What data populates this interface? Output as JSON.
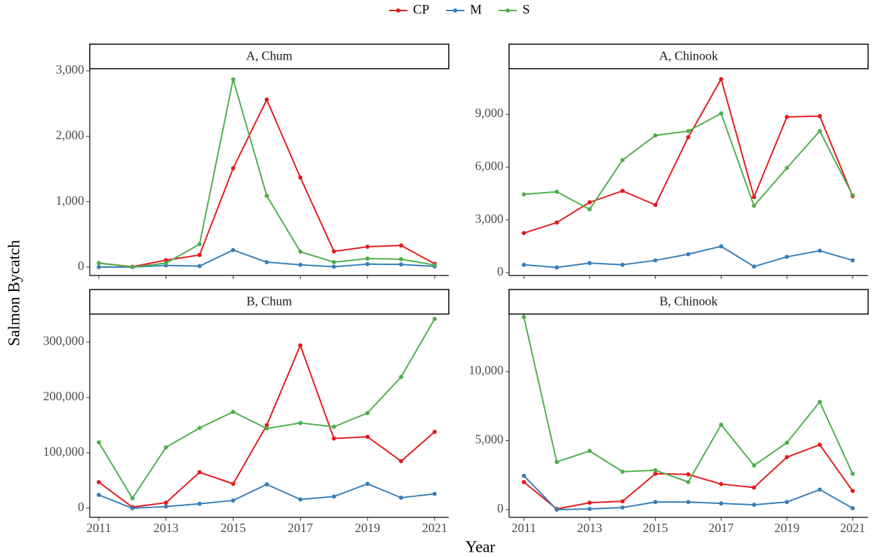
{
  "xlabel": "Year",
  "ylabel": "Salmon Bycatch",
  "chart_data": [
    {
      "type": "line",
      "title": "A, Chum",
      "x": [
        2011,
        2012,
        2013,
        2014,
        2015,
        2016,
        2017,
        2018,
        2019,
        2020,
        2021
      ],
      "xlim": [
        2010.73,
        2021.42
      ],
      "xticks": [
        2011,
        2013,
        2015,
        2017,
        2019,
        2021
      ],
      "ylim": [
        -129,
        3033
      ],
      "yticks": [
        0,
        {
          "value": 1000,
          "label": "1,000"
        },
        {
          "value": 2000,
          "label": "2,000"
        },
        {
          "value": 3000,
          "label": "3,000"
        }
      ],
      "series": [
        {
          "name": "CP",
          "color": "#e41a1c",
          "values": [
            60,
            5,
            105,
            185,
            1510,
            2560,
            1370,
            240,
            310,
            330,
            50
          ]
        },
        {
          "name": "M",
          "color": "#377eb8",
          "values": [
            0,
            0,
            25,
            15,
            260,
            75,
            35,
            5,
            45,
            40,
            10
          ]
        },
        {
          "name": "S",
          "color": "#4daf4a",
          "values": [
            60,
            0,
            60,
            350,
            2870,
            1090,
            235,
            75,
            130,
            120,
            30
          ]
        }
      ]
    },
    {
      "type": "line",
      "title": "A, Chinook",
      "x": [
        2011,
        2012,
        2013,
        2014,
        2015,
        2016,
        2017,
        2018,
        2019,
        2020,
        2021
      ],
      "xlim": [
        2010.55,
        2021.47
      ],
      "xticks": [
        2011,
        2013,
        2015,
        2017,
        2019,
        2021
      ],
      "ylim": [
        -159,
        11593
      ],
      "yticks": [
        0,
        {
          "value": 3000,
          "label": "3,000"
        },
        {
          "value": 6000,
          "label": "6,000"
        },
        {
          "value": 9000,
          "label": "9,000"
        }
      ],
      "series": [
        {
          "name": "CP",
          "color": "#e41a1c",
          "values": [
            2250,
            2850,
            4000,
            4650,
            3850,
            7700,
            11000,
            4300,
            8850,
            8900,
            4350
          ]
        },
        {
          "name": "M",
          "color": "#377eb8",
          "values": [
            450,
            300,
            550,
            450,
            700,
            1050,
            1500,
            350,
            900,
            1250,
            700
          ]
        },
        {
          "name": "S",
          "color": "#4daf4a",
          "values": [
            4450,
            4600,
            3600,
            6400,
            7800,
            8050,
            9050,
            3800,
            5950,
            8050,
            4400
          ]
        }
      ]
    },
    {
      "type": "line",
      "title": "B, Chum",
      "x": [
        2011,
        2012,
        2013,
        2014,
        2015,
        2016,
        2017,
        2018,
        2019,
        2020,
        2021
      ],
      "xlim": [
        2010.73,
        2021.42
      ],
      "xticks": [
        2011,
        2013,
        2015,
        2017,
        2019,
        2021
      ],
      "ylim": [
        -16456,
        350633
      ],
      "yticks": [
        0,
        {
          "value": 100000,
          "label": "100,000"
        },
        {
          "value": 200000,
          "label": "200,000"
        },
        {
          "value": 300000,
          "label": "300,000"
        }
      ],
      "series": [
        {
          "name": "CP",
          "color": "#e41a1c",
          "values": [
            47000,
            2000,
            10000,
            65000,
            44000,
            150000,
            294000,
            126000,
            129000,
            85000,
            138000
          ]
        },
        {
          "name": "M",
          "color": "#377eb8",
          "values": [
            24000,
            0,
            3000,
            8000,
            14000,
            43000,
            16000,
            21000,
            44000,
            19000,
            26000
          ]
        },
        {
          "name": "S",
          "color": "#4daf4a",
          "values": [
            119000,
            18000,
            110000,
            145000,
            174000,
            144000,
            154000,
            147000,
            172000,
            237000,
            342000
          ]
        }
      ]
    },
    {
      "type": "line",
      "title": "B, Chinook",
      "x": [
        2011,
        2012,
        2013,
        2014,
        2015,
        2016,
        2017,
        2018,
        2019,
        2020,
        2021
      ],
      "xlim": [
        2010.55,
        2021.47
      ],
      "xticks": [
        2011,
        2013,
        2015,
        2017,
        2019,
        2021
      ],
      "ylim": [
        -558,
        14162
      ],
      "yticks": [
        0,
        {
          "value": 5000,
          "label": "5,000"
        },
        {
          "value": 10000,
          "label": "10,000"
        }
      ],
      "series": [
        {
          "name": "CP",
          "color": "#e41a1c",
          "values": [
            2000,
            50,
            500,
            600,
            2600,
            2550,
            1850,
            1600,
            3800,
            4700,
            1350
          ]
        },
        {
          "name": "M",
          "color": "#377eb8",
          "values": [
            2450,
            0,
            50,
            150,
            550,
            550,
            450,
            350,
            550,
            1450,
            100
          ]
        },
        {
          "name": "S",
          "color": "#4daf4a",
          "values": [
            13950,
            3450,
            4250,
            2750,
            2850,
            2000,
            6150,
            3200,
            4850,
            7800,
            2600
          ]
        }
      ]
    }
  ]
}
